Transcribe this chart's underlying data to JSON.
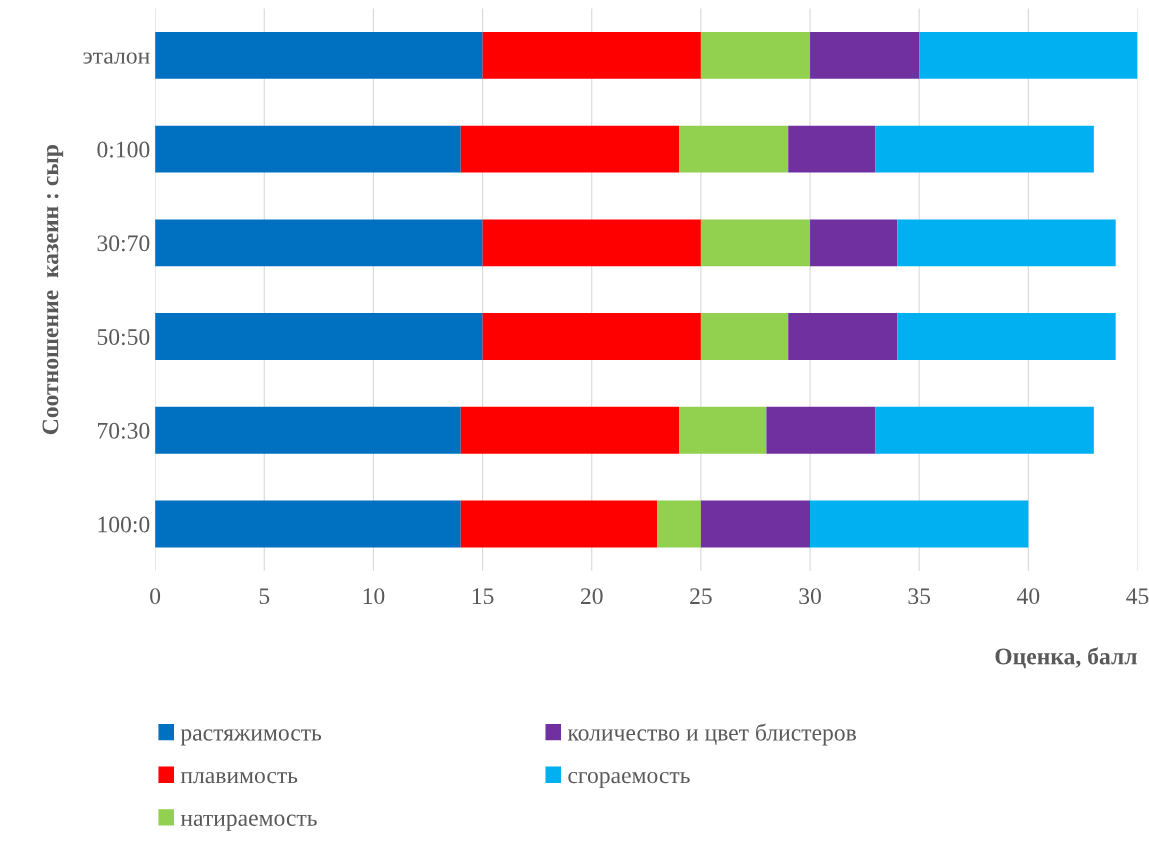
{
  "chart_data": {
    "type": "bar",
    "orientation": "horizontal",
    "stacked": true,
    "categories": [
      "эталон",
      "0:100",
      "30:70",
      "50:50",
      "70:30",
      "100:0"
    ],
    "series": [
      {
        "name": "растяжимость",
        "color": "#0070c0",
        "values": [
          15,
          14,
          15,
          15,
          14,
          14
        ]
      },
      {
        "name": "плавимость",
        "color": "#ff0000",
        "values": [
          10,
          10,
          10,
          10,
          10,
          9
        ]
      },
      {
        "name": "натираемость",
        "color": "#92d050",
        "values": [
          5,
          5,
          5,
          4,
          4,
          2
        ]
      },
      {
        "name": "количество и цвет блистеров",
        "color": "#7030a0",
        "values": [
          5,
          4,
          4,
          5,
          5,
          5
        ]
      },
      {
        "name": "сгораемость",
        "color": "#00b0f0",
        "values": [
          10,
          10,
          10,
          10,
          10,
          10
        ]
      }
    ],
    "xlabel": "Оценка, балл",
    "ylabel": "Соотношение  казеин : сыр",
    "xlim": [
      0,
      45
    ],
    "xticks": [
      0,
      5,
      10,
      15,
      20,
      25,
      30,
      35,
      40,
      45
    ],
    "grid": "x",
    "legend": "bottom"
  }
}
